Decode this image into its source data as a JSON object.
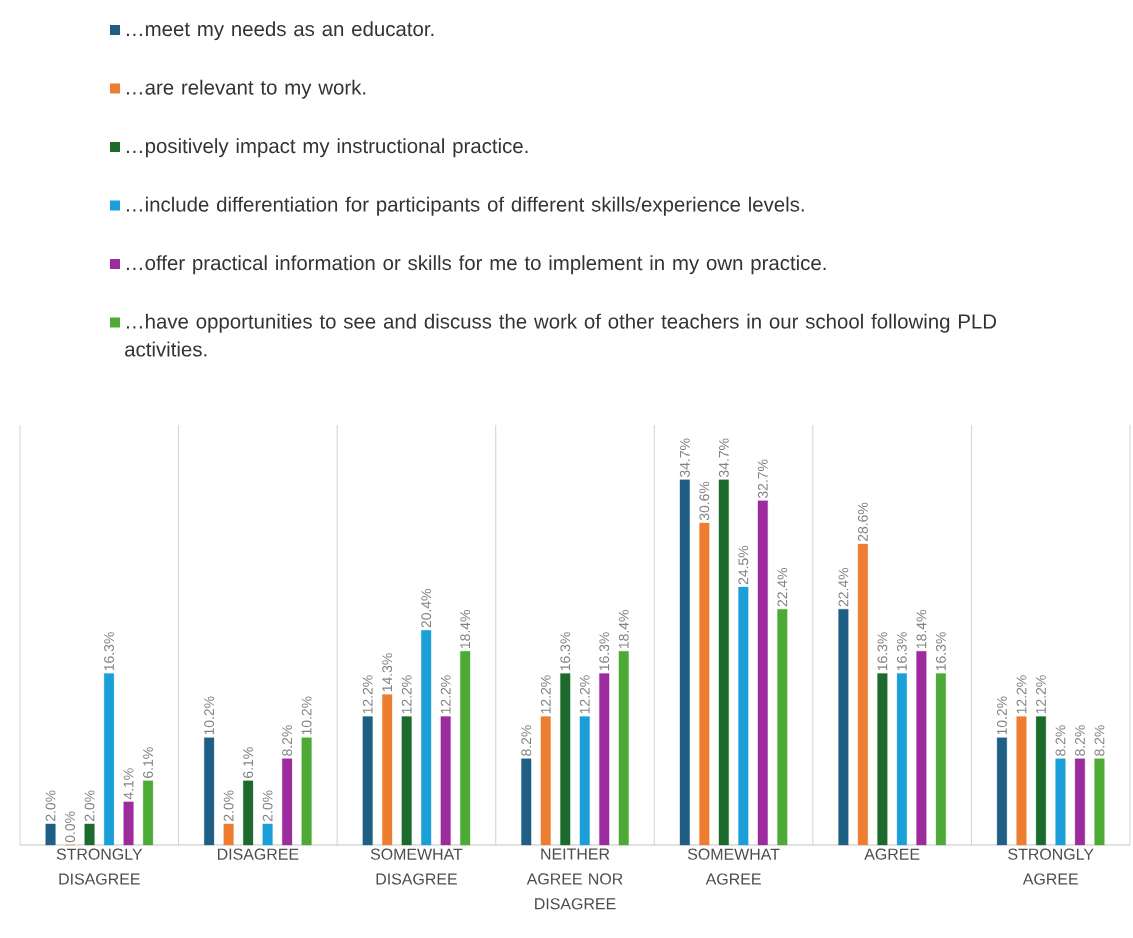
{
  "chart_data": {
    "type": "bar",
    "categories": [
      "STRONGLY DISAGREE",
      "DISAGREE",
      "SOMEWHAT DISAGREE",
      "NEITHER AGREE NOR DISAGREE",
      "SOMEWHAT AGREE",
      "AGREE",
      "STRONGLY AGREE"
    ],
    "series": [
      {
        "name": "…meet my needs as an educator.",
        "color": "#1f5f85",
        "values": [
          2.0,
          10.2,
          12.2,
          8.2,
          34.7,
          22.4,
          10.2
        ],
        "value_labels": [
          "2.0%",
          "10.2%",
          "12.2%",
          "8.2%",
          "34.7%",
          "22.4%",
          "10.2%"
        ]
      },
      {
        "name": "…are relevant to my work.",
        "color": "#ed7d31",
        "values": [
          0.0,
          2.0,
          14.3,
          12.2,
          30.6,
          28.6,
          12.2
        ],
        "value_labels": [
          "0.0%",
          "2.0%",
          "14.3%",
          "12.2%",
          "30.6%",
          "28.6%",
          "12.2%"
        ]
      },
      {
        "name": "…positively impact my instructional practice.",
        "color": "#1c6b2c",
        "values": [
          2.0,
          6.1,
          12.2,
          16.3,
          34.7,
          16.3,
          12.2
        ],
        "value_labels": [
          "2.0%",
          "6.1%",
          "12.2%",
          "16.3%",
          "34.7%",
          "16.3%",
          "12.2%"
        ]
      },
      {
        "name": "…include differentiation for participants of different skills/experience levels.",
        "color": "#1b9fd8",
        "values": [
          16.3,
          2.0,
          20.4,
          12.2,
          24.5,
          16.3,
          8.2
        ],
        "value_labels": [
          "16.3%",
          "2.0%",
          "20.4%",
          "12.2%",
          "24.5%",
          "16.3%",
          "8.2%"
        ]
      },
      {
        "name": "…offer practical information or skills for me to implement in my own practice.",
        "color": "#9c2b9e",
        "values": [
          4.1,
          8.2,
          12.2,
          16.3,
          32.7,
          18.4,
          8.2
        ],
        "value_labels": [
          "4.1%",
          "8.2%",
          "12.2%",
          "16.3%",
          "32.7%",
          "18.4%",
          "8.2%"
        ]
      },
      {
        "name": "…have opportunities to see and discuss the work of other teachers in our school following PLD activities.",
        "color": "#4caa35",
        "values": [
          6.1,
          10.2,
          18.4,
          18.4,
          22.4,
          16.3,
          8.2
        ],
        "value_labels": [
          "6.1%",
          "10.2%",
          "18.4%",
          "18.4%",
          "22.4%",
          "16.3%",
          "8.2%"
        ]
      }
    ],
    "grid": "x",
    "legend": "top"
  }
}
